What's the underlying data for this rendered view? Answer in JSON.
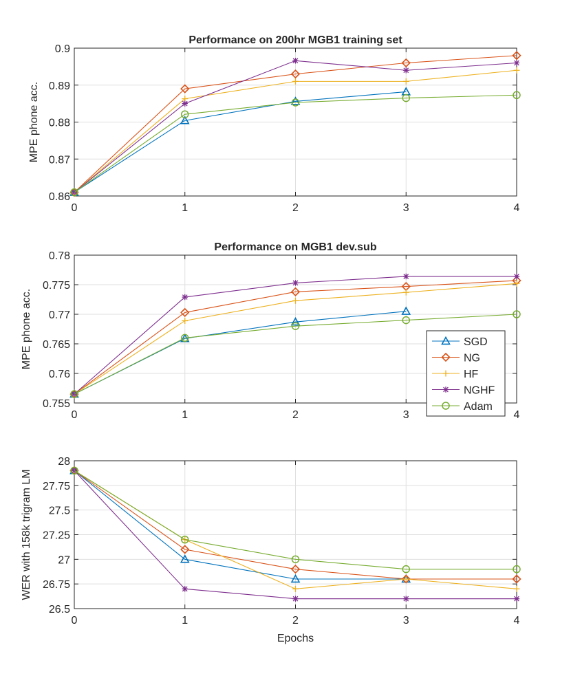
{
  "chart_data": [
    {
      "type": "line",
      "title": "Performance on 200hr MGB1 training set",
      "xlabel": "",
      "ylabel": "MPE phone acc.",
      "x": [
        0,
        1,
        2,
        3,
        4
      ],
      "xlim": [
        0,
        4
      ],
      "ylim": [
        0.86,
        0.9
      ],
      "xticks": [
        "0",
        "1",
        "2",
        "3",
        "4"
      ],
      "yticks": [
        {
          "v": 0.86,
          "label": "0.86"
        },
        {
          "v": 0.87,
          "label": "0.87"
        },
        {
          "v": 0.88,
          "label": "0.88"
        },
        {
          "v": 0.89,
          "label": "0.89"
        },
        {
          "v": 0.9,
          "label": "0.9"
        }
      ],
      "grid": true,
      "series": [
        {
          "name": "SGD",
          "values": [
            0.861,
            0.8804,
            0.8856,
            0.8882,
            null
          ]
        },
        {
          "name": "NG",
          "values": [
            0.861,
            0.889,
            0.893,
            0.896,
            0.898
          ]
        },
        {
          "name": "HF",
          "values": [
            0.861,
            0.8863,
            0.891,
            0.891,
            0.894
          ]
        },
        {
          "name": "NGHF",
          "values": [
            0.861,
            0.885,
            0.8966,
            0.894,
            0.896
          ]
        },
        {
          "name": "Adam",
          "values": [
            0.861,
            0.8821,
            0.8853,
            0.8865,
            0.8873
          ]
        }
      ]
    },
    {
      "type": "line",
      "title": "Performance on MGB1 dev.sub",
      "xlabel": "",
      "ylabel": "MPE phone acc.",
      "x": [
        0,
        1,
        2,
        3,
        4
      ],
      "xlim": [
        0,
        4
      ],
      "ylim": [
        0.755,
        0.78
      ],
      "xticks": [
        "0",
        "1",
        "2",
        "3",
        "4"
      ],
      "yticks": [
        {
          "v": 0.755,
          "label": "0.755"
        },
        {
          "v": 0.76,
          "label": "0.76"
        },
        {
          "v": 0.765,
          "label": "0.765"
        },
        {
          "v": 0.77,
          "label": "0.77"
        },
        {
          "v": 0.775,
          "label": "0.775"
        },
        {
          "v": 0.78,
          "label": "0.78"
        }
      ],
      "grid": true,
      "legend": "bottom-right",
      "series": [
        {
          "name": "SGD",
          "values": [
            0.7565,
            0.7659,
            0.7687,
            0.7705,
            null
          ]
        },
        {
          "name": "NG",
          "values": [
            0.7565,
            0.7703,
            0.7738,
            0.7747,
            0.7757
          ]
        },
        {
          "name": "HF",
          "values": [
            0.7565,
            0.7689,
            0.7723,
            0.7737,
            0.7752
          ]
        },
        {
          "name": "NGHF",
          "values": [
            0.7565,
            0.7729,
            0.7753,
            0.7764,
            0.7764
          ]
        },
        {
          "name": "Adam",
          "values": [
            0.7565,
            0.766,
            0.768,
            0.769,
            0.77
          ]
        }
      ]
    },
    {
      "type": "line",
      "title": "",
      "xlabel": "Epochs",
      "ylabel": "WER with 158k trigram LM",
      "x": [
        0,
        1,
        2,
        3,
        4
      ],
      "xlim": [
        0,
        4
      ],
      "ylim": [
        26.5,
        28
      ],
      "xticks": [
        "0",
        "1",
        "2",
        "3",
        "4"
      ],
      "yticks": [
        {
          "v": 26.5,
          "label": "26.5"
        },
        {
          "v": 26.75,
          "label": "26.75"
        },
        {
          "v": 27,
          "label": "27"
        },
        {
          "v": 27.25,
          "label": "27.25"
        },
        {
          "v": 27.5,
          "label": "27.5"
        },
        {
          "v": 27.75,
          "label": "27.75"
        },
        {
          "v": 28,
          "label": "28"
        }
      ],
      "grid": true,
      "series": [
        {
          "name": "SGD",
          "values": [
            27.9,
            27.0,
            26.8,
            26.8,
            null
          ]
        },
        {
          "name": "NG",
          "values": [
            27.9,
            27.1,
            26.9,
            26.8,
            26.8
          ]
        },
        {
          "name": "HF",
          "values": [
            27.9,
            27.2,
            26.7,
            26.8,
            26.7
          ]
        },
        {
          "name": "NGHF",
          "values": [
            27.9,
            26.7,
            26.6,
            26.6,
            26.6
          ]
        },
        {
          "name": "Adam",
          "values": [
            27.9,
            27.2,
            27.0,
            26.9,
            26.9
          ]
        }
      ]
    }
  ],
  "legend": {
    "entries": [
      {
        "name": "SGD",
        "color": "#0072BD",
        "marker": "triangle"
      },
      {
        "name": "NG",
        "color": "#D95319",
        "marker": "diamond"
      },
      {
        "name": "HF",
        "color": "#EDB120",
        "marker": "plus"
      },
      {
        "name": "NGHF",
        "color": "#7E2F8E",
        "marker": "asterisk"
      },
      {
        "name": "Adam",
        "color": "#77AC30",
        "marker": "circle"
      }
    ]
  }
}
